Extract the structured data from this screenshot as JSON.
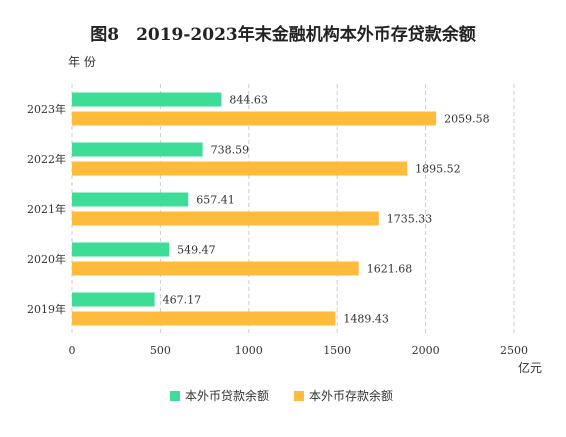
{
  "chart_data": {
    "type": "bar",
    "orientation": "horizontal",
    "title": "图8　2019-2023年末金融机构本外币存贷款余额",
    "ylabel": "年 份",
    "xlabel": "亿元",
    "categories": [
      "2023年",
      "2022年",
      "2021年",
      "2020年",
      "2019年"
    ],
    "series": [
      {
        "name": "本外币贷款余额",
        "color": "#3ddc97",
        "values": [
          844.63,
          738.59,
          657.41,
          549.47,
          467.17
        ],
        "labels": [
          "844.63",
          "738.59",
          "657.41",
          "549.47",
          "467.17"
        ]
      },
      {
        "name": "本外币存款余额",
        "color": "#ffbb3c",
        "values": [
          2059.58,
          1895.52,
          1735.33,
          1621.68,
          1489.43
        ],
        "labels": [
          "2059.58",
          "1895.52",
          "1735.33",
          "1621.68",
          "1489.43"
        ]
      }
    ],
    "xlim": [
      0,
      2500
    ],
    "xticks": [
      "0",
      "500",
      "1000",
      "1500",
      "2000",
      "2500"
    ],
    "xtick_values": [
      0,
      500,
      1000,
      1500,
      2000,
      2500
    ],
    "grid": true,
    "legend_position": "bottom"
  }
}
